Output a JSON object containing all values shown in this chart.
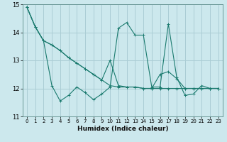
{
  "xlabel": "Humidex (Indice chaleur)",
  "xlim": [
    -0.5,
    23.5
  ],
  "ylim": [
    11,
    15
  ],
  "yticks": [
    11,
    12,
    13,
    14,
    15
  ],
  "xticks": [
    0,
    1,
    2,
    3,
    4,
    5,
    6,
    7,
    8,
    9,
    10,
    11,
    12,
    13,
    14,
    15,
    16,
    17,
    18,
    19,
    20,
    21,
    22,
    23
  ],
  "bg_color": "#cce8ed",
  "grid_color": "#aacdd5",
  "line_color": "#1a7a6e",
  "series": [
    [
      14.9,
      14.2,
      13.7,
      12.1,
      11.55,
      11.75,
      12.05,
      11.85,
      11.6,
      11.8,
      12.05,
      14.15,
      14.35,
      13.9,
      13.9,
      12.05,
      12.05,
      14.3,
      12.4,
      11.75,
      11.8,
      12.1,
      12.0,
      12.0
    ],
    [
      14.9,
      14.2,
      13.7,
      13.55,
      13.35,
      13.1,
      12.9,
      12.7,
      12.5,
      12.3,
      13.0,
      12.1,
      12.05,
      12.05,
      12.0,
      12.0,
      12.5,
      12.6,
      12.35,
      12.0,
      12.0,
      12.0,
      12.0,
      12.0
    ],
    [
      14.9,
      14.2,
      13.7,
      13.55,
      13.35,
      13.1,
      12.9,
      12.7,
      12.5,
      12.3,
      12.1,
      12.05,
      12.05,
      12.05,
      12.0,
      12.0,
      12.0,
      12.0,
      12.0,
      12.0,
      12.0,
      12.0,
      12.0,
      12.0
    ]
  ]
}
